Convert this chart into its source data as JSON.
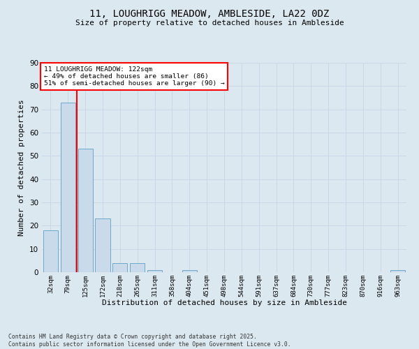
{
  "title_line1": "11, LOUGHRIGG MEADOW, AMBLESIDE, LA22 0DZ",
  "title_line2": "Size of property relative to detached houses in Ambleside",
  "xlabel": "Distribution of detached houses by size in Ambleside",
  "ylabel": "Number of detached properties",
  "bar_labels": [
    "32sqm",
    "79sqm",
    "125sqm",
    "172sqm",
    "218sqm",
    "265sqm",
    "311sqm",
    "358sqm",
    "404sqm",
    "451sqm",
    "498sqm",
    "544sqm",
    "591sqm",
    "637sqm",
    "684sqm",
    "730sqm",
    "777sqm",
    "823sqm",
    "870sqm",
    "916sqm",
    "963sqm"
  ],
  "bar_values": [
    18,
    73,
    53,
    23,
    4,
    4,
    1,
    0,
    1,
    0,
    0,
    0,
    0,
    0,
    0,
    0,
    0,
    0,
    0,
    0,
    1
  ],
  "bar_color": "#c9daea",
  "bar_edge_color": "#6fa8c9",
  "grid_color": "#c8d8e8",
  "background_color": "#dce8f0",
  "vline_color": "red",
  "annotation_text": "11 LOUGHRIGG MEADOW: 122sqm\n← 49% of detached houses are smaller (86)\n51% of semi-detached houses are larger (90) →",
  "annotation_box_color": "white",
  "annotation_box_edge": "red",
  "ylim": [
    0,
    90
  ],
  "yticks": [
    0,
    10,
    20,
    30,
    40,
    50,
    60,
    70,
    80,
    90
  ],
  "footer_line1": "Contains HM Land Registry data © Crown copyright and database right 2025.",
  "footer_line2": "Contains public sector information licensed under the Open Government Licence v3.0."
}
